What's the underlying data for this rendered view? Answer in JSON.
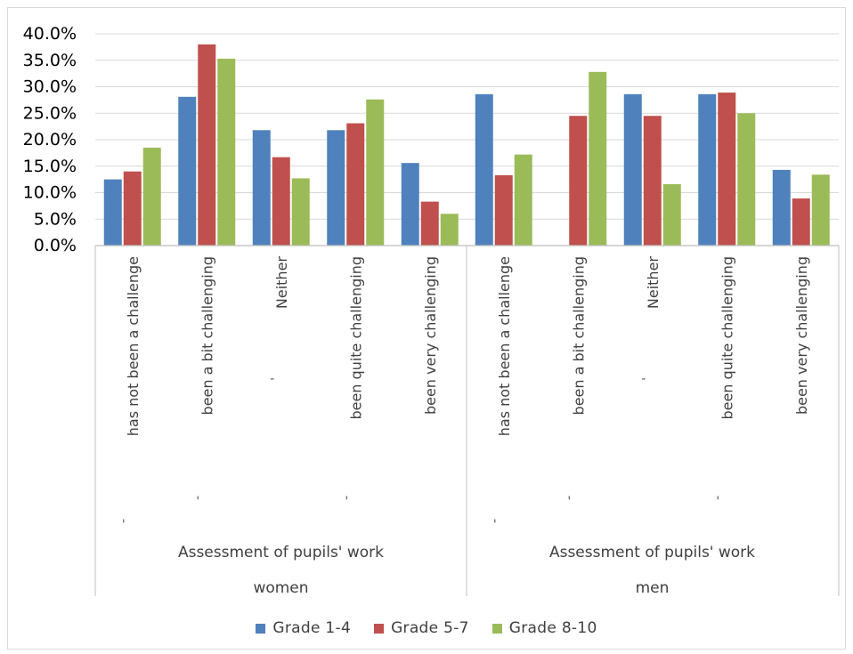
{
  "chart_data": {
    "type": "bar",
    "yaxis": {
      "ticks": [
        "0.0%",
        "5.0%",
        "10.0%",
        "15.0%",
        "20.0%",
        "25.0%",
        "30.0%",
        "35.0%",
        "40.0%"
      ],
      "ylim": [
        0,
        40
      ]
    },
    "grid": true,
    "legend_position": "bottom",
    "groups": [
      {
        "label": "women",
        "sublabel": "Assessment of pupils' work",
        "categories": [
          {
            "label": "has not been a challenge",
            "mark": "'"
          },
          {
            "label": "been a bit challenging",
            "mark": "'"
          },
          {
            "label": "Neither",
            "mark": "-"
          },
          {
            "label": "been quite challenging",
            "mark": "'"
          },
          {
            "label": "been very challenging",
            "mark": ""
          }
        ]
      },
      {
        "label": "men",
        "sublabel": "Assessment of pupils' work",
        "categories": [
          {
            "label": "has not been a challenge",
            "mark": "'"
          },
          {
            "label": "been a bit challenging",
            "mark": "'"
          },
          {
            "label": "Neither",
            "mark": "-"
          },
          {
            "label": "been quite challenging",
            "mark": "'"
          },
          {
            "label": "been very challenging",
            "mark": ""
          }
        ]
      }
    ],
    "series": [
      {
        "name": "Grade 1-4",
        "color": "#4f81bd",
        "values": [
          12.5,
          28.1,
          21.8,
          21.8,
          15.6,
          28.6,
          0,
          28.6,
          28.6,
          14.3
        ]
      },
      {
        "name": "Grade 5-7",
        "color": "#c0504d",
        "values": [
          14.0,
          38.0,
          16.7,
          23.1,
          8.3,
          13.3,
          24.5,
          24.5,
          28.9,
          8.9
        ]
      },
      {
        "name": "Grade 8-10",
        "color": "#9bbb59",
        "values": [
          18.5,
          35.3,
          12.7,
          27.6,
          6.0,
          17.2,
          32.8,
          11.6,
          25.0,
          13.4
        ]
      }
    ]
  }
}
